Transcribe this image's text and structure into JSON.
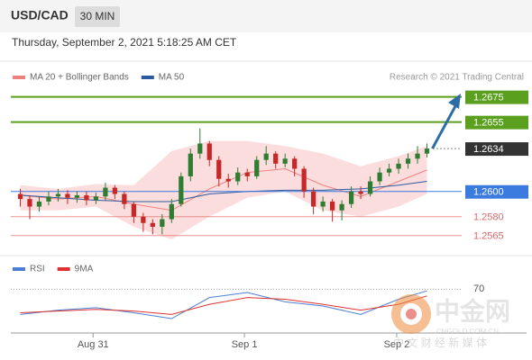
{
  "header": {
    "symbol": "USD/CAD",
    "timeframe": "30 MIN",
    "timestamp": "Thursday, September 2, 2021 5:18:25 AM CET",
    "source": "Research © 2021 Trading Central"
  },
  "watermark": {
    "brand": "中金网",
    "site": "CNGOLD.COM.CN",
    "tagline": "中 文 财 经 新 媒 体"
  },
  "chart_data": [
    {
      "type": "candlestick",
      "xlim": [
        -1,
        44
      ],
      "ylim": [
        1.2552,
        1.2684
      ],
      "xticks": [
        {
          "value": 7.7,
          "label": "Aug 31"
        },
        {
          "value": 23.7,
          "label": "Sep 1"
        },
        {
          "value": 39.8,
          "label": "Sep 2"
        }
      ],
      "up_color": "#2e7d32",
      "down_color": "#c62828",
      "open": [
        1.2598,
        1.2594,
        1.2588,
        1.2592,
        1.2596,
        1.2598,
        1.2595,
        1.2597,
        1.2593,
        1.2596,
        1.2603,
        1.2598,
        1.259,
        1.258,
        1.2575,
        1.2572,
        1.2578,
        1.259,
        1.2612,
        1.263,
        1.2638,
        1.2625,
        1.261,
        1.2608,
        1.2615,
        1.2612,
        1.2625,
        1.263,
        1.2622,
        1.2626,
        1.2618,
        1.26,
        1.2588,
        1.2592,
        1.2585,
        1.259,
        1.26,
        1.2598,
        1.2608,
        1.2615,
        1.2618,
        1.2622,
        1.2626,
        1.263
      ],
      "high": [
        1.2602,
        1.2597,
        1.2596,
        1.26,
        1.2602,
        1.2601,
        1.26,
        1.26,
        1.2599,
        1.2607,
        1.2605,
        1.26,
        1.2592,
        1.2583,
        1.2578,
        1.2582,
        1.2594,
        1.2615,
        1.2634,
        1.265,
        1.264,
        1.2628,
        1.2614,
        1.2619,
        1.2618,
        1.2628,
        1.2636,
        1.2632,
        1.263,
        1.2628,
        1.262,
        1.2603,
        1.2596,
        1.2594,
        1.2593,
        1.2604,
        1.2604,
        1.2612,
        1.2619,
        1.2622,
        1.2626,
        1.263,
        1.2636,
        1.2638
      ],
      "low": [
        1.2588,
        1.2578,
        1.2584,
        1.2589,
        1.2592,
        1.259,
        1.2591,
        1.2589,
        1.259,
        1.2593,
        1.2594,
        1.2586,
        1.2575,
        1.2568,
        1.2566,
        1.2566,
        1.2575,
        1.2588,
        1.2608,
        1.2626,
        1.262,
        1.2604,
        1.2603,
        1.2605,
        1.2608,
        1.261,
        1.2621,
        1.2618,
        1.2619,
        1.2612,
        1.2595,
        1.2582,
        1.2584,
        1.2576,
        1.2577,
        1.2587,
        1.2594,
        1.2596,
        1.2605,
        1.2612,
        1.2614,
        1.2618,
        1.2622,
        1.2627
      ],
      "close": [
        1.2594,
        1.2588,
        1.2592,
        1.2596,
        1.2598,
        1.2595,
        1.2597,
        1.2593,
        1.2596,
        1.2603,
        1.2598,
        1.259,
        1.258,
        1.2575,
        1.2572,
        1.2578,
        1.259,
        1.2612,
        1.263,
        1.2638,
        1.2625,
        1.261,
        1.2608,
        1.2615,
        1.2612,
        1.2625,
        1.263,
        1.2622,
        1.2626,
        1.2618,
        1.26,
        1.2588,
        1.2592,
        1.2585,
        1.259,
        1.26,
        1.2598,
        1.2608,
        1.2615,
        1.2618,
        1.2622,
        1.2626,
        1.263,
        1.2634
      ],
      "bands": {
        "x": [
          0,
          4,
          8,
          12,
          16,
          20,
          24,
          28,
          32,
          36,
          40,
          43
        ],
        "band_color": "#fbd5d5",
        "upper": [
          1.2605,
          1.2602,
          1.2606,
          1.2605,
          1.2632,
          1.264,
          1.264,
          1.2636,
          1.263,
          1.262,
          1.2628,
          1.2636
        ],
        "lower": [
          1.2585,
          1.2585,
          1.2588,
          1.2572,
          1.2562,
          1.258,
          1.2595,
          1.26,
          1.2585,
          1.258,
          1.2588,
          1.2598
        ]
      },
      "series": [
        {
          "name": "MA 20 + Bollinger Bands",
          "color": "#f08080",
          "x": [
            0,
            4,
            8,
            12,
            16,
            20,
            24,
            28,
            32,
            36,
            40,
            43
          ],
          "values": [
            1.2597,
            1.2594,
            1.2596,
            1.259,
            1.2585,
            1.2602,
            1.2615,
            1.2618,
            1.2605,
            1.2596,
            1.2608,
            1.2617
          ]
        },
        {
          "name": "MA 50",
          "color": "#2c5aa0",
          "x": [
            0,
            4,
            8,
            12,
            16,
            20,
            24,
            28,
            32,
            36,
            40,
            43
          ],
          "values": [
            1.2597,
            1.2595,
            1.2593,
            1.2592,
            1.2592,
            1.2598,
            1.26,
            1.2601,
            1.2601,
            1.2602,
            1.2605,
            1.2608
          ]
        }
      ],
      "levels": [
        {
          "value": 1.2675,
          "color": "#5aa01e",
          "box": true,
          "line": "solid"
        },
        {
          "value": 1.2655,
          "color": "#5aa01e",
          "box": true,
          "line": "solid"
        },
        {
          "value": 1.2634,
          "color": "#333333",
          "box": true,
          "line": "dotted"
        },
        {
          "value": 1.26,
          "label": "1.2600",
          "color": "#3b7be0",
          "box": true,
          "line": "solid"
        },
        {
          "value": 1.258,
          "label": "1.2580",
          "color": "#e06666",
          "box": false,
          "line": "solid"
        },
        {
          "value": 1.2565,
          "color": "#e06666",
          "box": false,
          "line": "solid"
        }
      ]
    },
    {
      "type": "line",
      "xlim": [
        -1,
        44
      ],
      "ylim": [
        20,
        80
      ],
      "yticks": [
        70
      ],
      "series": [
        {
          "name": "RSI",
          "color": "#4a7fd4",
          "x": [
            0,
            4,
            8,
            12,
            16,
            20,
            24,
            28,
            32,
            36,
            40,
            43
          ],
          "values": [
            40,
            45,
            48,
            42,
            35,
            60,
            66,
            55,
            50,
            40,
            58,
            68
          ]
        },
        {
          "name": "9MA",
          "color": "#e03030",
          "x": [
            0,
            4,
            8,
            12,
            16,
            20,
            24,
            28,
            32,
            36,
            40,
            43
          ],
          "values": [
            42,
            44,
            46,
            44,
            40,
            52,
            60,
            58,
            52,
            45,
            52,
            62
          ]
        }
      ]
    }
  ]
}
